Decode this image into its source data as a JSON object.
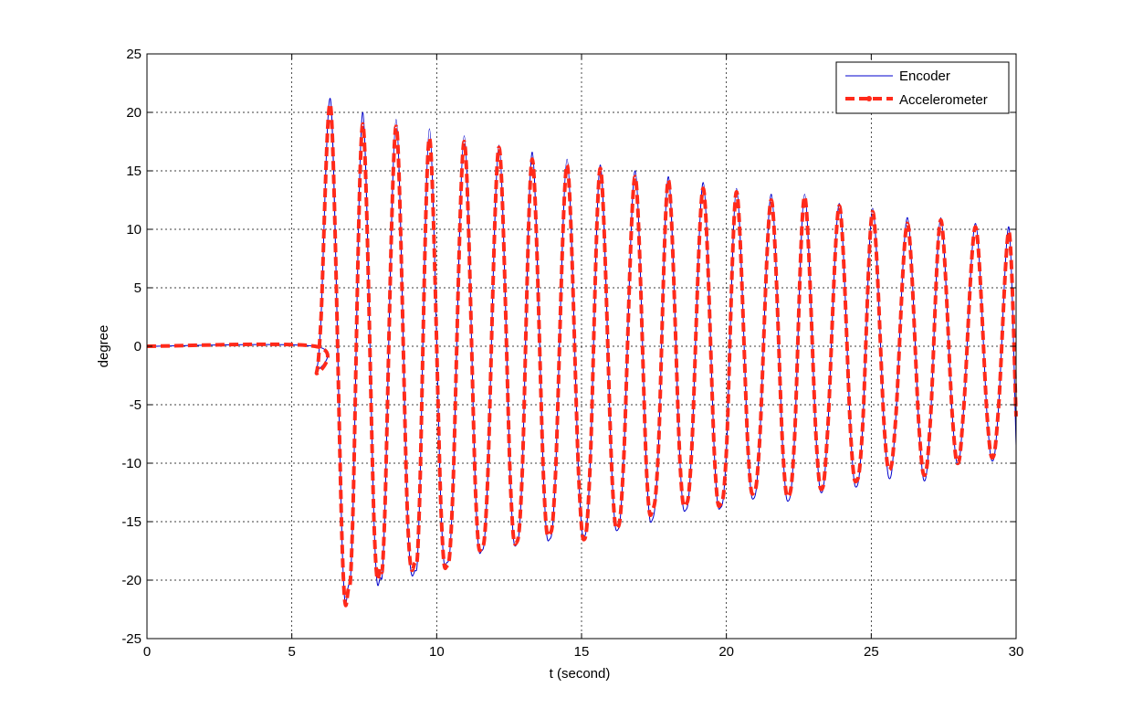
{
  "chart_data": {
    "type": "line",
    "title": "",
    "xlabel": "t (second)",
    "ylabel": "degree",
    "xlim": [
      0,
      30
    ],
    "ylim": [
      -25,
      25
    ],
    "xticks": [
      0,
      5,
      10,
      15,
      20,
      25,
      30
    ],
    "yticks": [
      -25,
      -20,
      -15,
      -10,
      -5,
      0,
      5,
      10,
      15,
      20,
      25
    ],
    "grid": true,
    "legend_position": "top-right",
    "colors": {
      "encoder": "#0000cc",
      "accelerometer": "#ff2a1a"
    },
    "series": [
      {
        "name": "Encoder",
        "style": "solid-thin",
        "x": [
          0,
          5.8,
          5.85,
          6.0,
          6.35,
          6.75,
          6.95,
          7.1,
          7.45,
          7.85,
          8.05,
          8.2,
          8.6,
          9.0,
          9.25,
          9.4,
          9.75,
          10.15,
          10.35,
          10.55,
          10.95,
          11.35,
          11.55,
          11.75,
          12.15,
          12.55,
          12.75,
          12.95,
          13.3,
          13.7,
          13.9,
          14.1,
          14.5,
          14.9,
          15.1,
          15.3,
          15.65,
          16.05,
          16.25,
          16.45,
          16.85,
          17.25,
          17.45,
          17.65,
          18.0,
          18.4,
          18.6,
          18.8,
          19.2,
          19.6,
          19.8,
          20.0,
          20.35,
          20.75,
          20.95,
          21.15,
          21.55,
          21.95,
          22.15,
          22.35,
          22.7,
          23.1,
          23.3,
          23.5,
          23.9,
          24.3,
          24.5,
          24.7,
          25.05,
          25.45,
          25.65,
          25.85,
          26.25,
          26.65,
          26.85,
          27.05,
          27.4,
          27.8,
          28.0,
          28.2,
          28.6,
          29.0,
          29.2,
          29.4,
          29.75,
          30.0
        ],
        "y": [
          0,
          0,
          -2,
          2,
          20.8,
          -18,
          -20.5,
          -15,
          20.0,
          -16,
          -19.8,
          -15,
          19.4,
          -15,
          -19.2,
          -14,
          18.6,
          -14,
          -18.5,
          -13,
          18.0,
          -13,
          -17.5,
          -12,
          17.2,
          -12,
          -17.0,
          -11,
          16.6,
          -12,
          -16.5,
          -11,
          16.0,
          -11,
          -16.3,
          -10,
          15.5,
          -11,
          -15.7,
          -10,
          15.0,
          -11,
          -14.8,
          -9,
          14.5,
          -10,
          -14.0,
          -9,
          14.0,
          -10,
          -13.8,
          -9,
          13.5,
          -9,
          -13.0,
          -8,
          13.0,
          -9,
          -13.2,
          -8,
          13.0,
          -8,
          -12.5,
          -7,
          12.2,
          -8,
          -12.0,
          -7,
          11.8,
          -7,
          -11.3,
          -6,
          11.0,
          -7,
          -11.5,
          -6,
          11.0,
          -6,
          -10.0,
          -5,
          10.5,
          -6,
          -9.8,
          -5,
          10.2,
          -8.5
        ]
      },
      {
        "name": "Accelerometer",
        "style": "dashed-thick",
        "x": [
          0,
          5.8,
          5.85,
          6.0,
          6.35,
          6.75,
          6.95,
          7.1,
          7.45,
          7.85,
          8.05,
          8.2,
          8.6,
          9.0,
          9.25,
          9.4,
          9.75,
          10.15,
          10.35,
          10.55,
          10.95,
          11.35,
          11.55,
          11.75,
          12.15,
          12.55,
          12.75,
          12.95,
          13.3,
          13.7,
          13.9,
          14.1,
          14.5,
          14.9,
          15.1,
          15.3,
          15.65,
          16.05,
          16.25,
          16.45,
          16.85,
          17.25,
          17.45,
          17.65,
          18.0,
          18.4,
          18.6,
          18.8,
          19.2,
          19.6,
          19.8,
          20.0,
          20.35,
          20.75,
          20.95,
          21.15,
          21.55,
          21.95,
          22.15,
          22.35,
          22.7,
          23.1,
          23.3,
          23.5,
          23.9,
          24.3,
          24.5,
          24.7,
          25.05,
          25.45,
          25.65,
          25.85,
          26.25,
          26.65,
          26.85,
          27.05,
          27.4,
          27.8,
          28.0,
          28.2,
          28.6,
          29.0,
          29.2,
          29.4,
          29.75,
          30.0
        ],
        "y": [
          0,
          0,
          -2.3,
          2,
          20.3,
          -18,
          -20.8,
          -15,
          19.0,
          -16,
          -19.0,
          -15,
          18.8,
          -15,
          -18.5,
          -14,
          17.8,
          -14,
          -18.8,
          -13,
          17.5,
          -13,
          -17.2,
          -12,
          17.0,
          -12,
          -16.8,
          -11,
          16.0,
          -12,
          -16.0,
          -11,
          15.5,
          -11,
          -16.5,
          -10,
          15.2,
          -11,
          -15.5,
          -10,
          14.5,
          -11,
          -14.0,
          -9,
          14.2,
          -10,
          -13.5,
          -9,
          13.5,
          -10,
          -13.5,
          -9,
          13.2,
          -9,
          -12.5,
          -8,
          12.5,
          -9,
          -12.8,
          -8,
          12.8,
          -8,
          -12.2,
          -7,
          12.0,
          -8,
          -11.5,
          -7,
          11.5,
          -7,
          -10.5,
          -6,
          10.5,
          -7,
          -11.0,
          -6,
          10.8,
          -6,
          -10.0,
          -5,
          10.2,
          -6,
          -9.5,
          -5,
          9.8,
          -6
        ]
      }
    ]
  }
}
